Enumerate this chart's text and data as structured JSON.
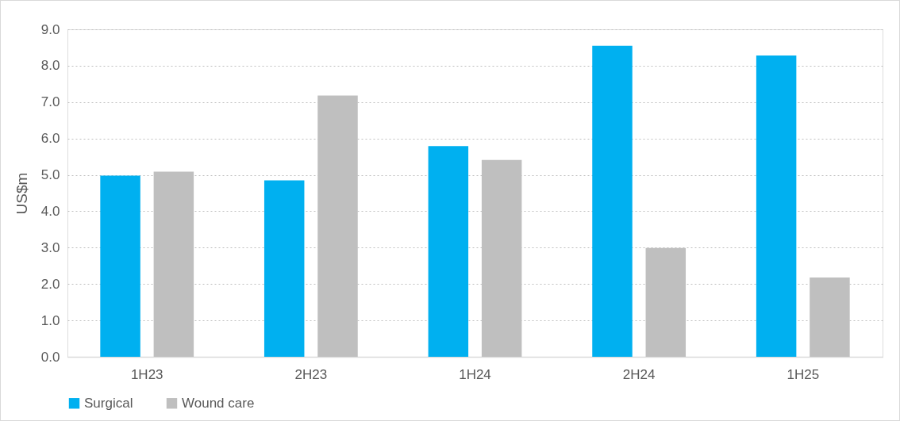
{
  "chart_data": {
    "type": "bar",
    "ylabel": "US$m",
    "categories": [
      "1H23",
      "2H23",
      "1H24",
      "2H24",
      "1H25"
    ],
    "series": [
      {
        "name": "Surgical",
        "color": "#00b0f0",
        "values": [
          4.98,
          4.85,
          5.79,
          8.55,
          8.28
        ]
      },
      {
        "name": "Wound care",
        "color": "#bfbfbf",
        "values": [
          5.09,
          7.18,
          5.41,
          2.99,
          2.18
        ]
      }
    ],
    "ylim": [
      0,
      9
    ],
    "yticks": [
      {
        "value": 0,
        "label": "0.0"
      },
      {
        "value": 1,
        "label": "1.0"
      },
      {
        "value": 2,
        "label": "2.0"
      },
      {
        "value": 3,
        "label": "3.0"
      },
      {
        "value": 4,
        "label": "4.0"
      },
      {
        "value": 5,
        "label": "5.0"
      },
      {
        "value": 6,
        "label": "6.0"
      },
      {
        "value": 7,
        "label": "7.0"
      },
      {
        "value": 8,
        "label": "8.0"
      },
      {
        "value": 9,
        "label": "9.0"
      }
    ],
    "grid": "y",
    "legend": "bottom"
  }
}
